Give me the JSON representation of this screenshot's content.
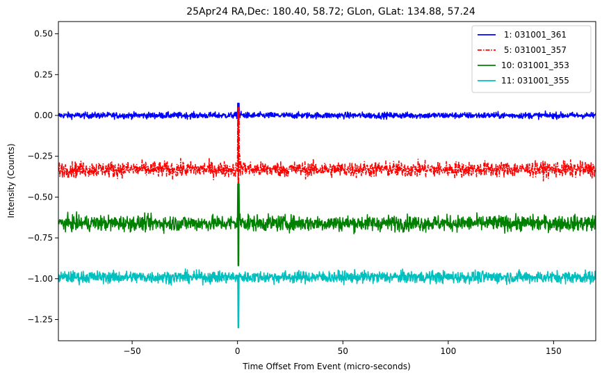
{
  "chart_data": {
    "type": "line",
    "title": "25Apr24 RA,Dec:  180.40,  58.72; GLon, GLat:  134.88,  57.24",
    "xlabel": "Time Offset From Event (micro-seconds)",
    "ylabel": "Intensity (Counts)",
    "xlim": [
      -85,
      170
    ],
    "ylim": [
      -1.38,
      0.575
    ],
    "x_ticks": [
      -50,
      0,
      50,
      100,
      150
    ],
    "x_tick_labels": [
      "−50",
      "0",
      "50",
      "100",
      "150"
    ],
    "y_ticks": [
      0.5,
      0.25,
      0.0,
      -0.25,
      -0.5,
      -0.75,
      -1.0,
      -1.25
    ],
    "y_tick_labels": [
      "0.50",
      "0.25",
      "0.00",
      "−0.25",
      "−0.50",
      "−0.75",
      "−1.00",
      "−1.25"
    ],
    "grid": false,
    "legend_position": "top-right",
    "series": [
      {
        "name": " 1: 031001_361",
        "color": "#0000ff",
        "style": "solid",
        "baseline": 0.0,
        "noise": 0.018,
        "pulse_min": -0.05,
        "pulse_max": 0.075
      },
      {
        "name": " 5: 031001_357",
        "color": "#ff0000",
        "style": "dashdot",
        "baseline": -0.33,
        "noise": 0.045,
        "pulse_min": -0.45,
        "pulse_max": 0.05
      },
      {
        "name": "10: 031001_353",
        "color": "#008000",
        "style": "solid",
        "baseline": -0.66,
        "noise": 0.045,
        "pulse_min": -0.92,
        "pulse_max": -0.42
      },
      {
        "name": "11: 031001_355",
        "color": "#00bfbf",
        "style": "solid",
        "baseline": -0.99,
        "noise": 0.035,
        "pulse_min": -1.3,
        "pulse_max": -0.98
      }
    ],
    "pulse_x": 0.5
  }
}
